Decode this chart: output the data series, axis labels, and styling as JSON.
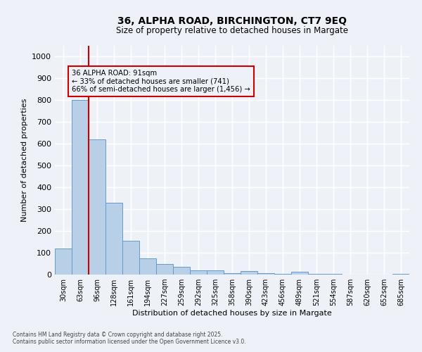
{
  "title_line1": "36, ALPHA ROAD, BIRCHINGTON, CT7 9EQ",
  "title_line2": "Size of property relative to detached houses in Margate",
  "xlabel": "Distribution of detached houses by size in Margate",
  "ylabel": "Number of detached properties",
  "categories": [
    "30sqm",
    "63sqm",
    "96sqm",
    "128sqm",
    "161sqm",
    "194sqm",
    "227sqm",
    "259sqm",
    "292sqm",
    "325sqm",
    "358sqm",
    "390sqm",
    "423sqm",
    "456sqm",
    "489sqm",
    "521sqm",
    "554sqm",
    "587sqm",
    "620sqm",
    "652sqm",
    "685sqm"
  ],
  "values": [
    120,
    800,
    620,
    330,
    155,
    75,
    50,
    35,
    20,
    20,
    5,
    15,
    5,
    3,
    12,
    3,
    2,
    0,
    0,
    0,
    2
  ],
  "bar_color": "#b8cfe8",
  "bar_edge_color": "#6699cc",
  "marker_label": "36 ALPHA ROAD: 91sqm",
  "marker_note1": "← 33% of detached houses are smaller (741)",
  "marker_note2": "66% of semi-detached houses are larger (1,456) →",
  "annotation_box_color": "#cc0000",
  "ylim": [
    0,
    1050
  ],
  "yticks": [
    0,
    100,
    200,
    300,
    400,
    500,
    600,
    700,
    800,
    900,
    1000
  ],
  "background_color": "#eef2f8",
  "grid_color": "#ffffff",
  "footnote1": "Contains HM Land Registry data © Crown copyright and database right 2025.",
  "footnote2": "Contains public sector information licensed under the Open Government Licence v3.0."
}
